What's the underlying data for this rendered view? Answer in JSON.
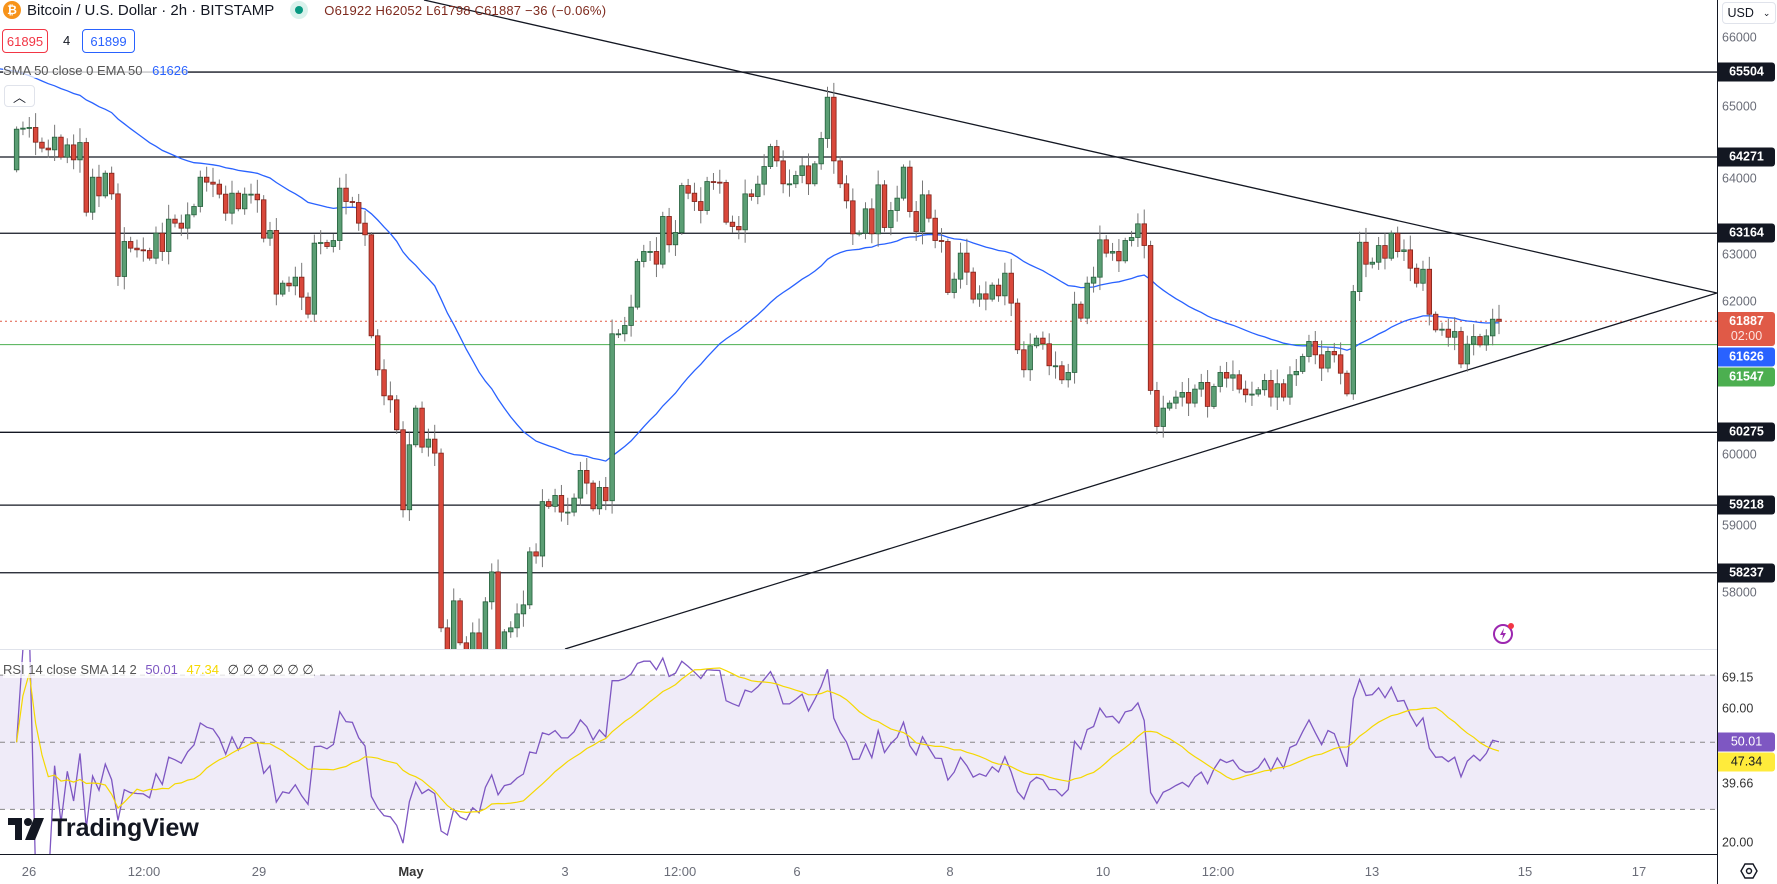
{
  "header": {
    "symbol_icon": "bitcoin-icon",
    "title": "Bitcoin / U.S. Dollar · 2h · BITSTAMP",
    "ohlc": "O61922 H62052 L61798 C61887 −36 (−0.06%)",
    "bid": "61895",
    "spread": "4",
    "ask": "61899"
  },
  "indicators": {
    "ema_label": "SMA 50 close 0 EMA 50",
    "ema_value": "61626",
    "rsi_label": "RSI 14 close SMA 14 2",
    "rsi_value": "50.01",
    "rsi_sma_value": "47.34",
    "rsi_extras": "∅  ∅  ∅  ∅  ∅  ∅"
  },
  "axis": {
    "currency": "USD",
    "price_ticks": [
      "66000",
      "65000",
      "64000",
      "63000",
      "62000",
      "60000",
      "59000",
      "58000"
    ],
    "level_labels": [
      "65504",
      "64271",
      "63164",
      "60275",
      "59218",
      "58237"
    ],
    "last_price": "61887",
    "countdown": "02:00",
    "ema_price": "61626",
    "green_price": "61547",
    "rsi_ticks": [
      "69.15",
      "60.00",
      "39.66",
      "20.00"
    ],
    "rsi_value": "50.01",
    "rsi_sma": "47.34"
  },
  "time_axis": [
    "26",
    "12:00",
    "29",
    "May",
    "3",
    "12:00",
    "6",
    "8",
    "10",
    "12:00",
    "13",
    "15",
    "17"
  ],
  "branding": {
    "logo": "TradingView"
  },
  "colors": {
    "up": "#5b9e74",
    "up_border": "#25603c",
    "down": "#d9483b",
    "down_border": "#7e2219",
    "ema": "#2962ff",
    "rsi": "#7e57c2",
    "rsi_sma": "#f5d800",
    "last": "#e05a47",
    "green": "#4caf50"
  },
  "chart_data": {
    "type": "candlestick",
    "title": "Bitcoin / U.S. Dollar · 2h · BITSTAMP",
    "ylim": [
      57130,
      66550
    ],
    "first_open": 64085,
    "closes": [
      64675,
      64690,
      64700,
      64486,
      64400,
      64375,
      64559,
      64269,
      64447,
      64230,
      64481,
      63470,
      63978,
      63707,
      64036,
      63736,
      62537,
      63045,
      62948,
      62924,
      62914,
      62803,
      63166,
      62900,
      63369,
      63311,
      63238,
      63432,
      63553,
      63978,
      63906,
      63877,
      63732,
      63456,
      63746,
      63519,
      63732,
      63732,
      63650,
      63093,
      63205,
      62281,
      62440,
      62401,
      62527,
      62237,
      61990,
      63021,
      63030,
      62972,
      63059,
      63819,
      63625,
      63611,
      63311,
      63142,
      61676,
      61183,
      60805,
      60747,
      60312,
      59151,
      60094,
      60626,
      60060,
      60176,
      59973,
      57437,
      57050,
      57829,
      57220,
      57000,
      57364,
      57000,
      57815,
      58249,
      57050,
      57379,
      57437,
      57640,
      57771,
      58540,
      58480,
      59270,
      59200,
      59359,
      59117,
      59117,
      59320,
      59722,
      59538,
      59165,
      59475,
      59282,
      61705,
      61705,
      61826,
      62092,
      62755,
      62900,
      62900,
      62716,
      63408,
      62997,
      63176,
      63857,
      63746,
      63625,
      63495,
      63915,
      63906,
      63901,
      63325,
      63263,
      63214,
      63736,
      63698,
      63877,
      64133,
      64423,
      64215,
      63882,
      63882,
      64003,
      64143,
      63882,
      64172,
      64540,
      65139,
      64215,
      63882,
      63635,
      63156,
      63166,
      63519,
      63156,
      63867,
      63248,
      63495,
      63674,
      64124,
      63480,
      63190,
      63722,
      63383,
      63059,
      63045,
      62305,
      62498,
      62876,
      62600,
      62208,
      62285,
      62208,
      62411,
      62256,
      62585,
      62150,
      61473,
      61183,
      61531,
      61642,
      61560,
      61241,
      61241,
      61037,
      61144,
      62135,
      61932,
      62440,
      62527,
      63069,
      62876,
      62900,
      62764,
      63059,
      63103,
      63301,
      62987,
      60883,
      60360,
      60626,
      60699,
      60786,
      60854,
      60699,
      60902,
      60999,
      60651,
      60941,
      61144,
      61062,
      61110,
      60902,
      60820,
      60830,
      60893,
      61028,
      60786,
      60980,
      60786,
      61110,
      61159,
      61376,
      61594,
      61400,
      61207,
      61449,
      61400,
      61133,
      60833,
      62318,
      63034,
      62715,
      62744,
      62986,
      62802,
      63165,
      62899,
      62923,
      62657,
      62439,
      62642,
      61989,
      61762,
      61772,
      61655,
      61738,
      61268,
      61554,
      61665,
      61544,
      61675,
      61917,
      61887
    ],
    "levels": [
      65504,
      64271,
      63164,
      60275,
      59218,
      58237
    ],
    "last_price": 61887,
    "green_line": 61547,
    "ema": {
      "period": 50,
      "seed": 65550,
      "last": 61626
    },
    "rsi": {
      "period": 14,
      "sma_period": 14,
      "ylim": [
        16.7,
        77.5
      ],
      "bands": [
        70,
        50,
        30
      ],
      "last": 50.01,
      "sma_last": 47.34
    },
    "xlabel": "",
    "ylabel": "USD"
  }
}
